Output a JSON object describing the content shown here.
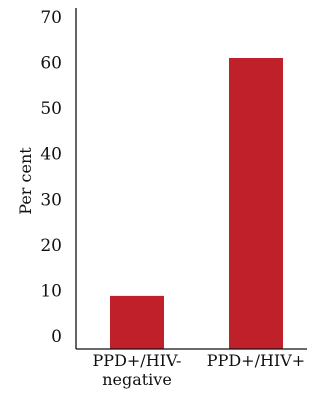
{
  "chart_data": {
    "type": "bar",
    "categories": [
      "PPD+/HIV-\nnegative",
      "PPD+/HIV+"
    ],
    "values": [
      8.8,
      61
    ],
    "title": "",
    "xlabel": "",
    "ylabel": "Per cent",
    "ylim": [
      0,
      70
    ],
    "yticks": [
      0,
      10,
      20,
      30,
      40,
      50,
      60,
      70
    ],
    "grid": false,
    "legend": "none",
    "colors": {
      "bar": "#c0202a",
      "axis": "#111111",
      "text": "#111111"
    }
  }
}
